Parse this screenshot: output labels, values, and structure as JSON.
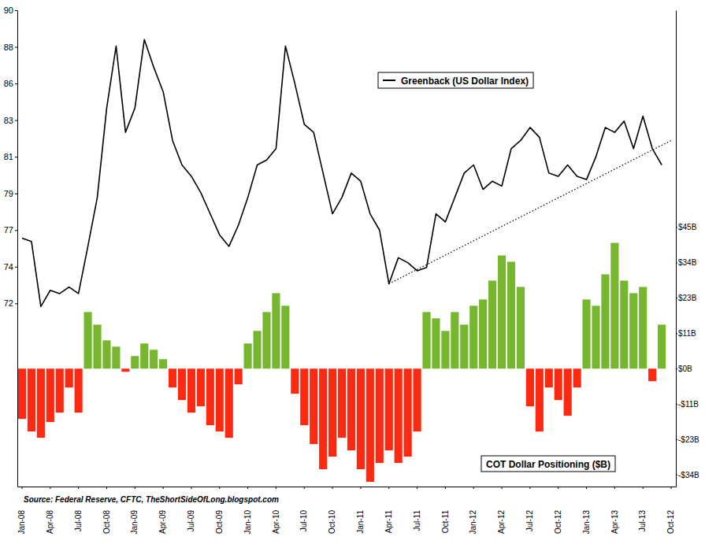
{
  "chart_data": {
    "type": "combo",
    "source": "Source: Federal Reserve, CFTC, TheShortSideOfLong.blogspot.com",
    "categories": [
      "Jan-08",
      null,
      null,
      "Apr-08",
      null,
      null,
      "Jul-08",
      null,
      null,
      "Oct-08",
      null,
      null,
      "Jan-09",
      null,
      null,
      "Apr-09",
      null,
      null,
      "Jul-09",
      null,
      null,
      "Oct-09",
      null,
      null,
      "Jan-10",
      null,
      null,
      "Apr-10",
      null,
      null,
      "Jul-10",
      null,
      null,
      "Oct-10",
      null,
      null,
      "Jan-11",
      null,
      null,
      "Apr-11",
      null,
      null,
      "Jul-11",
      null,
      null,
      "Oct-11",
      null,
      null,
      "Jan-12",
      null,
      null,
      "Apr-12",
      null,
      null,
      "Jul-12",
      null,
      null,
      "Oct-12",
      null,
      null,
      "Jan-13",
      null,
      null,
      "Apr-13",
      null,
      null,
      "Jul-13",
      null,
      null,
      "Oct-12"
    ],
    "series": [
      {
        "name": "Greenback (US Dollar Index)",
        "type": "line",
        "color": "#000000",
        "values": [
          76.0,
          75.8,
          71.8,
          72.8,
          72.6,
          73.0,
          72.6,
          75.5,
          78.5,
          84.0,
          87.8,
          82.5,
          84.0,
          88.2,
          86.5,
          85.0,
          82.0,
          80.5,
          79.8,
          78.8,
          77.5,
          76.2,
          75.5,
          76.8,
          78.5,
          80.5,
          80.8,
          81.5,
          87.8,
          85.5,
          83.0,
          82.5,
          80.0,
          77.5,
          78.5,
          80.0,
          79.5,
          77.5,
          76.5,
          73.2,
          74.8,
          74.5,
          74.0,
          74.2,
          77.5,
          77.0,
          78.5,
          80.0,
          80.5,
          79.0,
          79.5,
          79.2,
          81.5,
          82.0,
          82.8,
          82.2,
          80.0,
          79.8,
          80.5,
          79.8,
          79.6,
          81.0,
          82.8,
          82.5,
          83.2,
          81.5,
          83.5,
          81.5,
          80.5,
          null
        ]
      },
      {
        "name": "COT Dollar Positioning ($B)",
        "type": "bar",
        "axis": "y2",
        "values": [
          -16,
          -20,
          -22,
          -17,
          -14,
          -6,
          -14,
          18,
          14,
          9,
          7,
          -1,
          4,
          8,
          6,
          3,
          -6,
          -10,
          -14,
          -12,
          -18,
          -20,
          -22,
          -5,
          8,
          12,
          18,
          24,
          20,
          -8,
          -18,
          -24,
          -32,
          -28,
          -22,
          -26,
          -32,
          -36,
          -30,
          -26,
          -30,
          -28,
          -20,
          18,
          16,
          12,
          18,
          14,
          20,
          22,
          28,
          36,
          34,
          26,
          -12,
          -20,
          -6,
          -10,
          -15,
          -6,
          22,
          20,
          30,
          40,
          28,
          24,
          26,
          -4,
          14,
          null
        ],
        "colors": [
          "#fc2a12",
          "#fc2a12",
          "#fc2a12",
          "#fc2a12",
          "#fc2a12",
          "#fc2a12",
          "#fc2a12",
          "#76b72f",
          "#76b72f",
          "#76b72f",
          "#76b72f",
          "#fc2a12",
          "#76b72f",
          "#76b72f",
          "#76b72f",
          "#76b72f",
          "#fc2a12",
          "#fc2a12",
          "#fc2a12",
          "#fc2a12",
          "#fc2a12",
          "#fc2a12",
          "#fc2a12",
          "#fc2a12",
          "#76b72f",
          "#76b72f",
          "#76b72f",
          "#76b72f",
          "#76b72f",
          "#fc2a12",
          "#fc2a12",
          "#fc2a12",
          "#fc2a12",
          "#fc2a12",
          "#fc2a12",
          "#fc2a12",
          "#fc2a12",
          "#fc2a12",
          "#fc2a12",
          "#fc2a12",
          "#fc2a12",
          "#fc2a12",
          "#fc2a12",
          "#76b72f",
          "#76b72f",
          "#76b72f",
          "#76b72f",
          "#76b72f",
          "#76b72f",
          "#76b72f",
          "#76b72f",
          "#76b72f",
          "#76b72f",
          "#76b72f",
          "#fc2a12",
          "#fc2a12",
          "#fc2a12",
          "#fc2a12",
          "#fc2a12",
          "#fc2a12",
          "#76b72f",
          "#76b72f",
          "#76b72f",
          "#76b72f",
          "#76b72f",
          "#76b72f",
          "#76b72f",
          "#fc2a12",
          "#76b72f",
          null
        ]
      }
    ],
    "annotations": [
      {
        "type": "line",
        "line_style": "dotted",
        "x": [
          39,
          69
        ],
        "values": [
          73.2,
          82.0
        ]
      }
    ],
    "ylim": [
      60.75,
      90
    ],
    "yticks": [
      72,
      {
        "value": 74.25,
        "label": "74"
      },
      {
        "value": 76.5,
        "label": "77"
      },
      {
        "value": 78.75,
        "label": "79"
      },
      81,
      {
        "value": 83.25,
        "label": "83"
      },
      {
        "value": 85.5,
        "label": "86"
      },
      {
        "value": 87.75,
        "label": "88"
      },
      90
    ],
    "y2lim": [
      -37.5,
      114
    ],
    "y2ticks": [
      {
        "value": -33.75,
        "label": "-$34B"
      },
      {
        "value": -22.5,
        "label": "-$23B"
      },
      {
        "value": -11.25,
        "label": "-$11B"
      },
      {
        "value": 0,
        "label": "$0B"
      },
      {
        "value": 11.25,
        "label": "$11B"
      },
      {
        "value": 22.5,
        "label": "$23B"
      },
      {
        "value": 33.75,
        "label": "$34B"
      },
      {
        "value": 45,
        "label": "$45B"
      }
    ],
    "grid": false
  }
}
